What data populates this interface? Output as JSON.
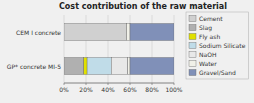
{
  "chart_data": {
    "type": "bar",
    "orientation": "horizontal",
    "stacked": true,
    "title": "Cost contribution of the raw material",
    "categories": [
      "GP* concrete MI-5",
      "CEM I concrete"
    ],
    "series": [
      {
        "name": "Cement",
        "color": "#d0d0d0",
        "values": [
          0,
          57
        ]
      },
      {
        "name": "Slag",
        "color": "#b0b0b0",
        "values": [
          18,
          0
        ]
      },
      {
        "name": "Fly ash",
        "color": "#e0e000",
        "values": [
          3,
          0
        ]
      },
      {
        "name": "Sodium Silicate",
        "color": "#c0dce8",
        "values": [
          22,
          0
        ]
      },
      {
        "name": "NaOH",
        "color": "#e8e8e8",
        "values": [
          15,
          0
        ]
      },
      {
        "name": "Water",
        "color": "#f0f0e8",
        "values": [
          2,
          3
        ]
      },
      {
        "name": "Gravel/Sand",
        "color": "#8090b8",
        "values": [
          40,
          40
        ]
      }
    ],
    "xlim": [
      0,
      100
    ],
    "xticks": [
      {
        "value": 0,
        "label": "0%"
      },
      {
        "value": 20,
        "label": "20%"
      },
      {
        "value": 40,
        "label": "40%"
      },
      {
        "value": 60,
        "label": "60%"
      },
      {
        "value": 80,
        "label": "80%"
      },
      {
        "value": 100,
        "label": "100%"
      }
    ],
    "grid": true,
    "legend": "right"
  }
}
